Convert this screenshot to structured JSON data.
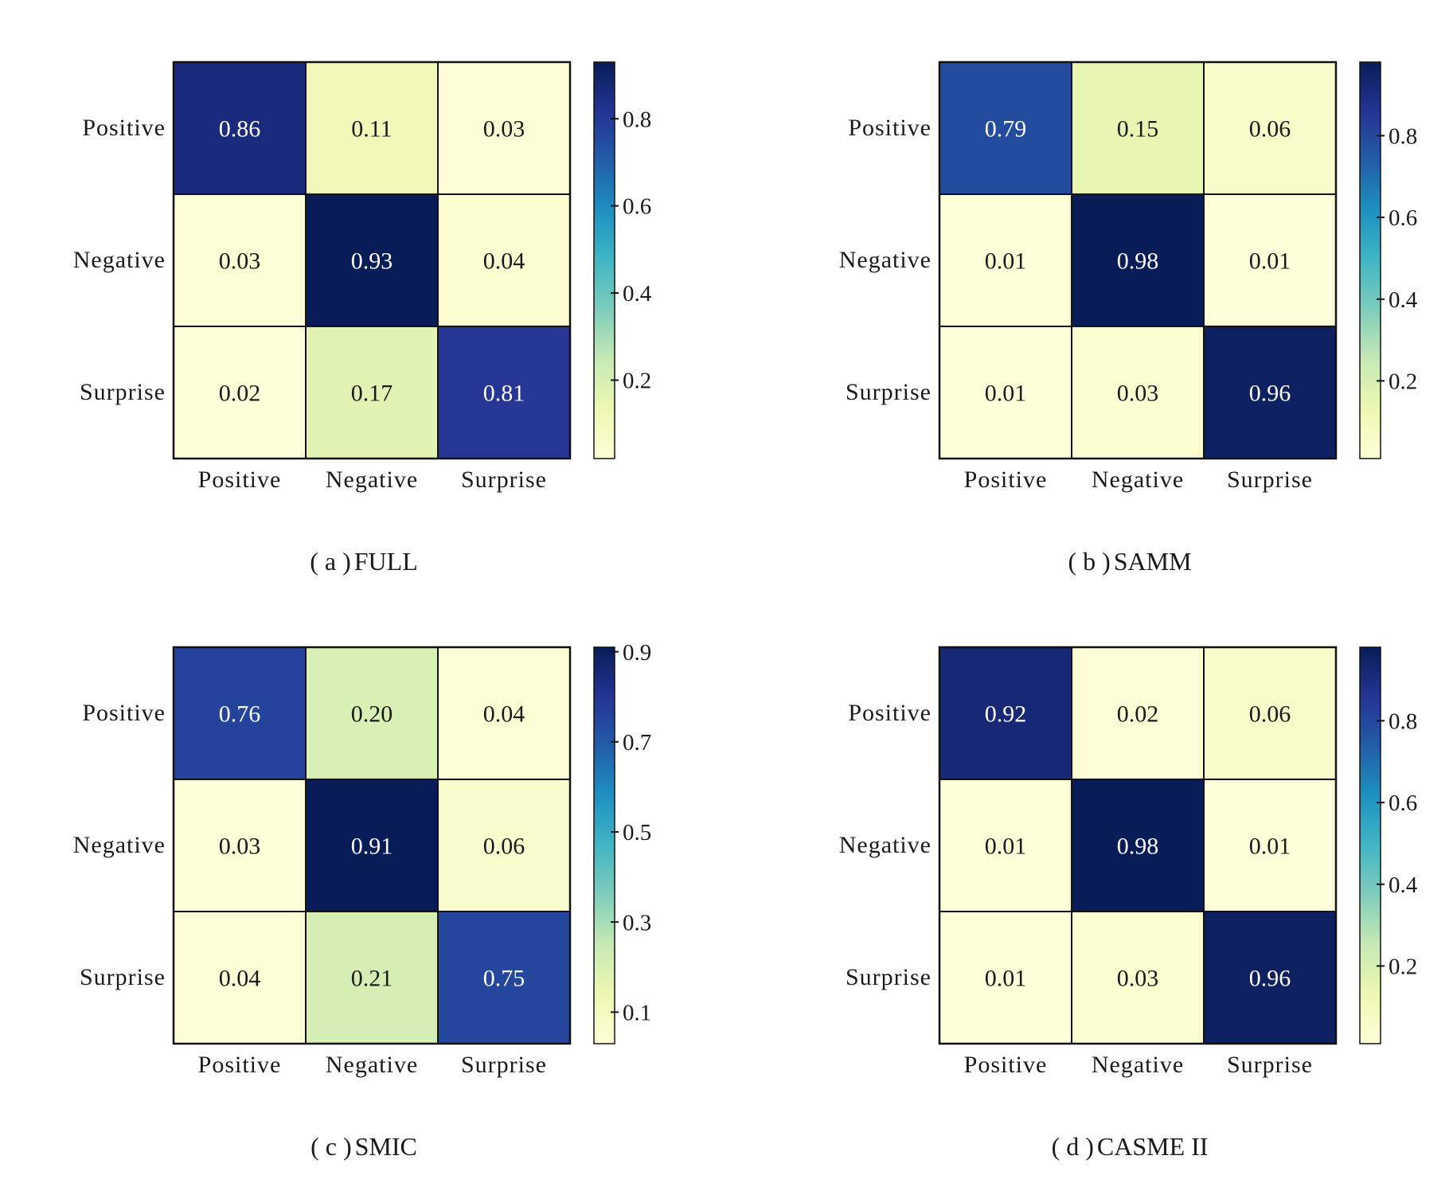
{
  "chart_data": [
    {
      "type": "heatmap",
      "title": "",
      "caption_letter": "( a )",
      "caption_name": "FULL",
      "row_labels": [
        "Positive",
        "Negative",
        "Surprise"
      ],
      "col_labels": [
        "Positive",
        "Negative",
        "Surprise"
      ],
      "values": [
        [
          0.86,
          0.11,
          0.03
        ],
        [
          0.03,
          0.93,
          0.04
        ],
        [
          0.02,
          0.17,
          0.81
        ]
      ],
      "value_labels": [
        [
          "0.86",
          "0.11",
          "0.03"
        ],
        [
          "0.03",
          "0.93",
          "0.04"
        ],
        [
          "0.02",
          "0.17",
          "0.81"
        ]
      ],
      "colorbar": {
        "min": 0.02,
        "max": 0.93,
        "ticks": [
          0.2,
          0.4,
          0.6,
          0.8
        ],
        "tick_labels": [
          "0.2",
          "0.4",
          "0.6",
          "0.8"
        ]
      }
    },
    {
      "type": "heatmap",
      "title": "",
      "caption_letter": "( b )",
      "caption_name": "SAMM",
      "row_labels": [
        "Positive",
        "Negative",
        "Surprise"
      ],
      "col_labels": [
        "Positive",
        "Negative",
        "Surprise"
      ],
      "values": [
        [
          0.79,
          0.15,
          0.06
        ],
        [
          0.01,
          0.98,
          0.01
        ],
        [
          0.01,
          0.03,
          0.96
        ]
      ],
      "value_labels": [
        [
          "0.79",
          "0.15",
          "0.06"
        ],
        [
          "0.01",
          "0.98",
          "0.01"
        ],
        [
          "0.01",
          "0.03",
          "0.96"
        ]
      ],
      "colorbar": {
        "min": 0.01,
        "max": 0.98,
        "ticks": [
          0.2,
          0.4,
          0.6,
          0.8
        ],
        "tick_labels": [
          "0.2",
          "0.4",
          "0.6",
          "0.8"
        ]
      }
    },
    {
      "type": "heatmap",
      "title": "",
      "caption_letter": "( c )",
      "caption_name": "SMIC",
      "row_labels": [
        "Positive",
        "Negative",
        "Surprise"
      ],
      "col_labels": [
        "Positive",
        "Negative",
        "Surprise"
      ],
      "values": [
        [
          0.76,
          0.2,
          0.04
        ],
        [
          0.03,
          0.91,
          0.06
        ],
        [
          0.04,
          0.21,
          0.75
        ]
      ],
      "value_labels": [
        [
          "0.76",
          "0.20",
          "0.04"
        ],
        [
          "0.03",
          "0.91",
          "0.06"
        ],
        [
          "0.04",
          "0.21",
          "0.75"
        ]
      ],
      "colorbar": {
        "min": 0.03,
        "max": 0.91,
        "ticks": [
          0.1,
          0.3,
          0.5,
          0.7,
          0.9
        ],
        "tick_labels": [
          "0.1",
          "0.3",
          "0.5",
          "0.7",
          "0.9"
        ]
      }
    },
    {
      "type": "heatmap",
      "title": "",
      "caption_letter": "( d )",
      "caption_name": "CASME II",
      "row_labels": [
        "Positive",
        "Negative",
        "Surprise"
      ],
      "col_labels": [
        "Positive",
        "Negative",
        "Surprise"
      ],
      "values": [
        [
          0.92,
          0.02,
          0.06
        ],
        [
          0.01,
          0.98,
          0.01
        ],
        [
          0.01,
          0.03,
          0.96
        ]
      ],
      "value_labels": [
        [
          "0.92",
          "0.02",
          "0.06"
        ],
        [
          "0.01",
          "0.98",
          "0.01"
        ],
        [
          "0.01",
          "0.03",
          "0.96"
        ]
      ],
      "colorbar": {
        "min": 0.01,
        "max": 0.98,
        "ticks": [
          0.2,
          0.4,
          0.6,
          0.8
        ],
        "tick_labels": [
          "0.2",
          "0.4",
          "0.6",
          "0.8"
        ]
      }
    }
  ],
  "colormap": {
    "name": "YlGnBu",
    "stops": [
      "#ffffd9",
      "#edf8b1",
      "#c7e9b4",
      "#7fcdbb",
      "#41b6c4",
      "#1d91c0",
      "#225ea8",
      "#253494",
      "#081d58"
    ]
  },
  "colors": {
    "grid_line": "#111111",
    "text_dark": "#1a1a1a",
    "text_light": "#ffffff"
  }
}
